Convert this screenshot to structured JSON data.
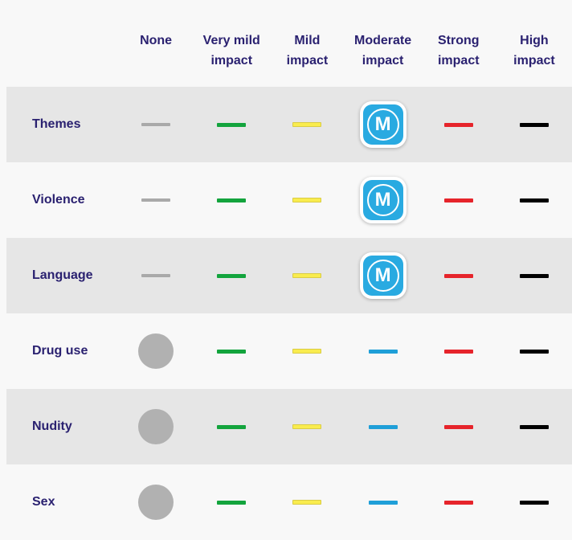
{
  "colors": {
    "page_background": "#f8f8f8",
    "shaded_row": "#e6e6e6",
    "heading_text": "#2a2170",
    "none_gray": "#a9a9a9",
    "circle_gray": "#b1b1b1",
    "very_mild_green": "#13a43d",
    "mild_yellow": "#f9ec4e",
    "mild_yellow_border": "#d9cc45",
    "moderate_blue": "#1f9fd8",
    "strong_red": "#e6242b",
    "high_black": "#000000",
    "badge_blue": "#29aae1",
    "badge_white": "#ffffff"
  },
  "matrix": {
    "badge_letter": "M",
    "columns": [
      {
        "id": "none",
        "label": "None"
      },
      {
        "id": "very-mild",
        "label": "Very mild impact"
      },
      {
        "id": "mild",
        "label": "Mild impact"
      },
      {
        "id": "moderate",
        "label": "Moderate impact"
      },
      {
        "id": "strong",
        "label": "Strong impact"
      },
      {
        "id": "high",
        "label": "High impact"
      }
    ],
    "rows": [
      {
        "label": "Themes",
        "shaded": true,
        "cells": [
          "dash-gray",
          "dash-green",
          "dash-yellow",
          "badge-m",
          "dash-red",
          "dash-black"
        ]
      },
      {
        "label": "Violence",
        "shaded": false,
        "cells": [
          "dash-gray",
          "dash-green",
          "dash-yellow",
          "badge-m",
          "dash-red",
          "dash-black"
        ]
      },
      {
        "label": "Language",
        "shaded": true,
        "cells": [
          "dash-gray",
          "dash-green",
          "dash-yellow",
          "badge-m",
          "dash-red",
          "dash-black"
        ]
      },
      {
        "label": "Drug use",
        "shaded": false,
        "cells": [
          "circle-gray",
          "dash-green",
          "dash-yellow",
          "dash-blue",
          "dash-red",
          "dash-black"
        ]
      },
      {
        "label": "Nudity",
        "shaded": true,
        "cells": [
          "circle-gray",
          "dash-green",
          "dash-yellow",
          "dash-blue",
          "dash-red",
          "dash-black"
        ]
      },
      {
        "label": "Sex",
        "shaded": false,
        "cells": [
          "circle-gray",
          "dash-green",
          "dash-yellow",
          "dash-blue",
          "dash-red",
          "dash-black"
        ]
      }
    ]
  }
}
